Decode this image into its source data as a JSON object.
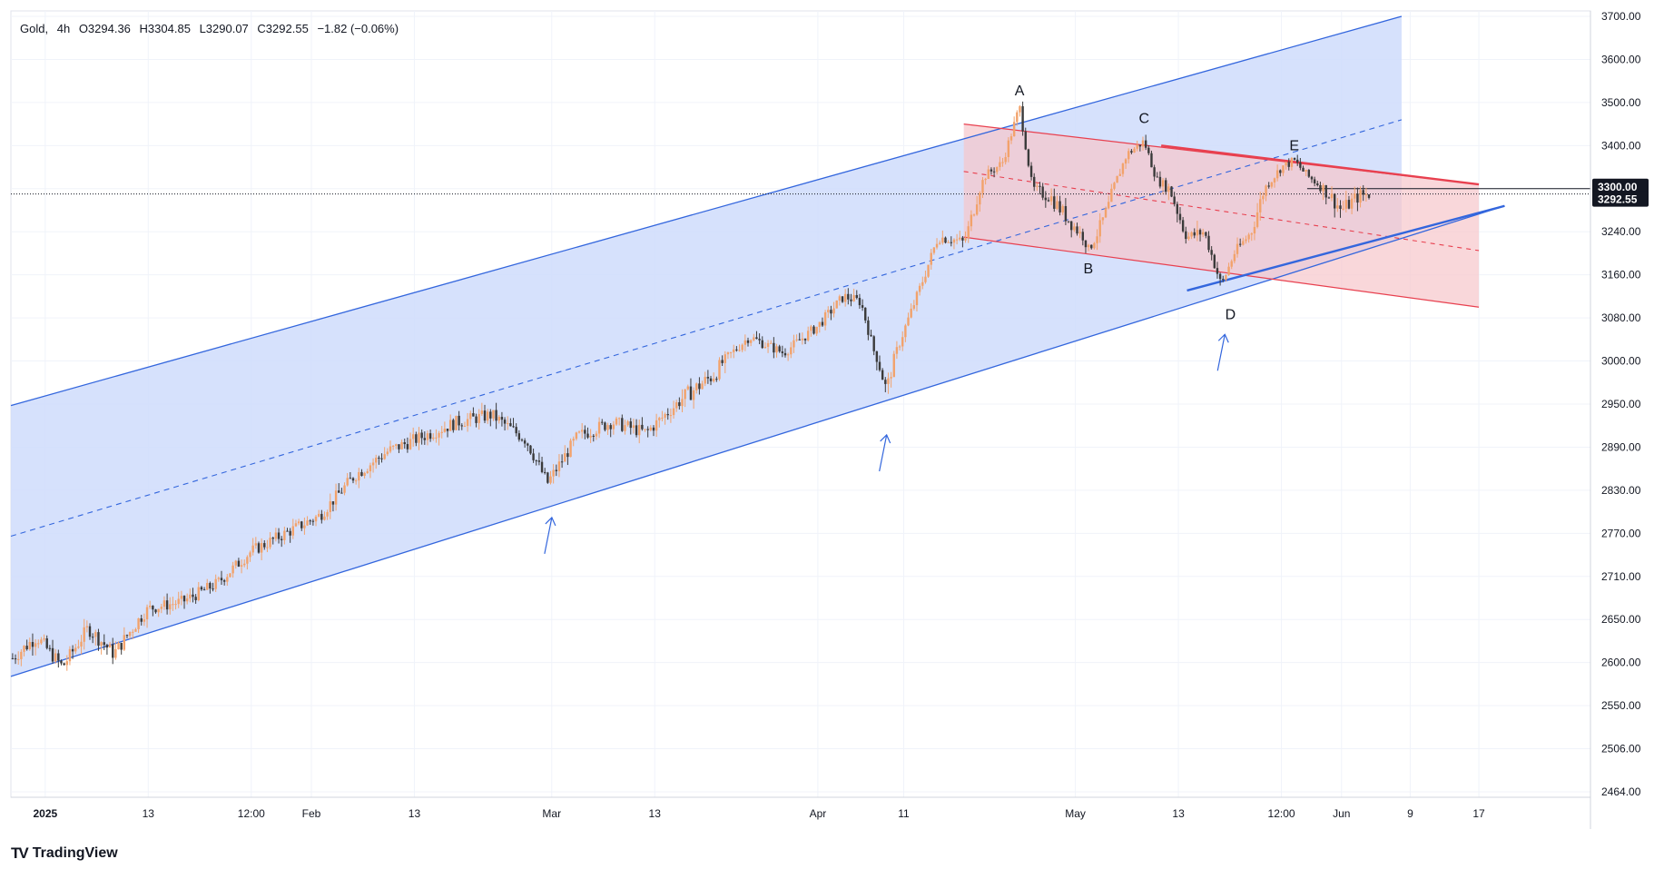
{
  "header": {
    "symbol": "Gold",
    "interval": "4h",
    "open": "O3294.36",
    "high": "H3304.85",
    "low": "L3290.07",
    "close": "C3292.55",
    "change": "−1.82 (−0.06%)"
  },
  "brand": {
    "name": "TradingView",
    "logo": "TV"
  },
  "colors": {
    "up": "#f2a26b",
    "down": "#3a3a3a",
    "channel_line": "#3366dd",
    "channel_fill": "#cfdcfb",
    "flag_line": "#e8404f",
    "flag_fill": "#f6c6cb",
    "price_label_bg": "#131722"
  },
  "price_labels": {
    "resistance": "3300.00",
    "last": "3292.55"
  },
  "chart_data": {
    "type": "candlestick",
    "title": "Gold, 4h",
    "y_ticks": [
      3700,
      3600,
      3500,
      3400,
      3300,
      3240,
      3160,
      3080,
      3000,
      2950,
      2890,
      2830,
      2770,
      2710,
      2650,
      2600,
      2550,
      2506,
      2464
    ],
    "y_tick_labels": [
      "3700.00",
      "3600.00",
      "3500.00",
      "3400.00",
      "3300.00",
      "3240.00",
      "3160.00",
      "3080.00",
      "3000.00",
      "2950.00",
      "2890.00",
      "2830.00",
      "2770.00",
      "2710.00",
      "2650.00",
      "2600.00",
      "2550.00",
      "2506.00",
      "2464.00"
    ],
    "x_tick_labels": [
      "2025",
      "13",
      "12:00",
      "Feb",
      "13",
      "Mar",
      "13",
      "Apr",
      "11",
      "May",
      "13",
      "12:00",
      "Jun",
      "9",
      "17"
    ],
    "x_ticks_day": [
      0,
      12,
      24,
      31,
      43,
      59,
      71,
      90,
      100,
      120,
      132,
      144,
      151,
      159,
      167
    ],
    "x_range_days": [
      -4,
      180
    ],
    "last_price": 3292.55,
    "resistance_price": 3300.0,
    "price_path": [
      [
        -3.8,
        2605
      ],
      [
        -1,
        2630
      ],
      [
        2,
        2595
      ],
      [
        5,
        2640
      ],
      [
        8,
        2610
      ],
      [
        12,
        2665
      ],
      [
        16,
        2675
      ],
      [
        20,
        2700
      ],
      [
        24,
        2745
      ],
      [
        28,
        2770
      ],
      [
        32,
        2795
      ],
      [
        36,
        2850
      ],
      [
        40,
        2885
      ],
      [
        44,
        2905
      ],
      [
        48,
        2925
      ],
      [
        52,
        2935
      ],
      [
        56,
        2900
      ],
      [
        58.5,
        2840
      ],
      [
        62,
        2905
      ],
      [
        66,
        2925
      ],
      [
        70,
        2910
      ],
      [
        74,
        2955
      ],
      [
        78,
        2985
      ],
      [
        82,
        3045
      ],
      [
        86,
        3015
      ],
      [
        90,
        3065
      ],
      [
        93,
        3120
      ],
      [
        95,
        3110
      ],
      [
        96.5,
        3020
      ],
      [
        98,
        2965
      ],
      [
        100,
        3055
      ],
      [
        102,
        3140
      ],
      [
        104,
        3230
      ],
      [
        106,
        3225
      ],
      [
        107,
        3220
      ],
      [
        109.5,
        3330
      ],
      [
        111.5,
        3360
      ],
      [
        113.5,
        3490
      ],
      [
        115,
        3300
      ],
      [
        117,
        3290
      ],
      [
        119,
        3260
      ],
      [
        121,
        3230
      ],
      [
        121.5,
        3205
      ],
      [
        124,
        3280
      ],
      [
        126,
        3380
      ],
      [
        128,
        3410
      ],
      [
        129.5,
        3320
      ],
      [
        131,
        3300
      ],
      [
        133,
        3230
      ],
      [
        135,
        3240
      ],
      [
        137,
        3140
      ],
      [
        138.5,
        3200
      ],
      [
        140.5,
        3240
      ],
      [
        142,
        3300
      ],
      [
        144,
        3350
      ],
      [
        145.5,
        3365
      ],
      [
        147,
        3330
      ],
      [
        149,
        3300
      ],
      [
        151,
        3270
      ],
      [
        153,
        3290
      ],
      [
        154.5,
        3292.55
      ]
    ],
    "annotations": [
      {
        "label": "A",
        "day": 113.5,
        "price": 3500
      },
      {
        "label": "B",
        "day": 121.5,
        "price": 3200
      },
      {
        "label": "C",
        "day": 128,
        "price": 3436
      },
      {
        "label": "D",
        "day": 137,
        "price": 3115
      },
      {
        "label": "E",
        "day": 145.5,
        "price": 3372
      }
    ],
    "support_arrows": [
      {
        "day": 58.8,
        "price": 2830
      },
      {
        "day": 97.8,
        "price": 2945
      },
      {
        "day": 137.2,
        "price": 3100
      }
    ],
    "ascending_channel": {
      "lower": [
        [
          -4,
          2584
        ],
        [
          170,
          3276
        ]
      ],
      "upper": [
        [
          -4,
          2948
        ],
        [
          158,
          3700
        ]
      ],
      "mid": [
        [
          107,
          3226
        ],
        [
          158,
          3460
        ]
      ],
      "fill_right_day": 158
    },
    "descending_channel": {
      "upper": [
        [
          107,
          3450
        ],
        [
          167,
          3310
        ]
      ],
      "lower": [
        [
          107,
          3230
        ],
        [
          167,
          3100
        ]
      ],
      "mid": [
        [
          107,
          3340
        ],
        [
          167,
          3205
        ]
      ],
      "bold_top": [
        [
          130,
          3400
        ],
        [
          167,
          3310
        ]
      ]
    }
  }
}
